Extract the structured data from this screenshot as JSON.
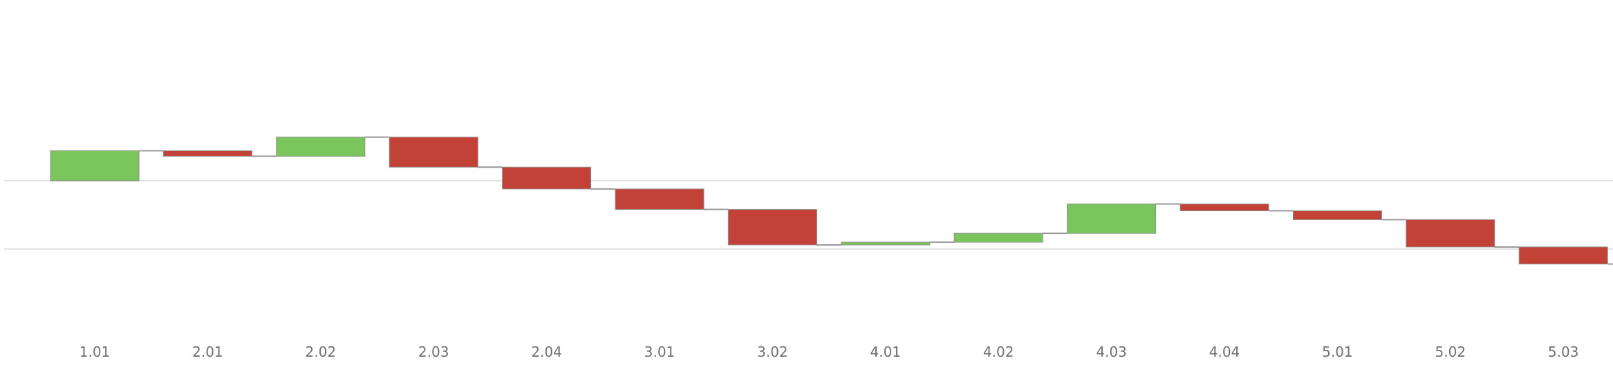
{
  "chart_data": {
    "type": "waterfall",
    "title": "",
    "xlabel": "",
    "ylabel": "",
    "ylim": [
      -2.7,
      2.65
    ],
    "gridlines_y": [
      0,
      -1
    ],
    "grid": true,
    "legend": "none",
    "colors": {
      "increase": "#7ac55c",
      "decrease": "#c24237",
      "connector": "#9a9a9a",
      "grid": "#e3e3e3"
    },
    "categories": [
      "1.01",
      "2.01",
      "2.02",
      "2.03",
      "2.04",
      "3.01",
      "3.02",
      "4.01",
      "4.02",
      "4.03",
      "4.04",
      "5.01",
      "5.02",
      "5.03"
    ],
    "values": [
      0.44,
      -0.08,
      0.28,
      -0.44,
      -0.32,
      -0.3,
      -0.52,
      0.04,
      0.13,
      0.43,
      -0.1,
      -0.13,
      -0.4,
      -0.25
    ]
  }
}
